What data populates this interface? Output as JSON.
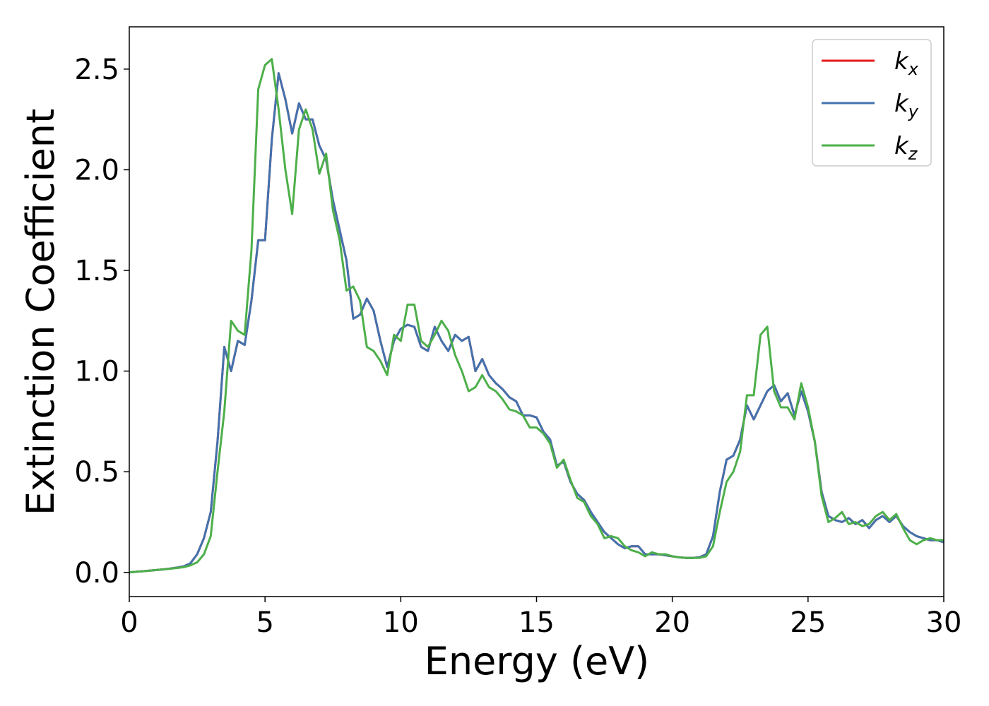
{
  "chart_data": {
    "type": "line",
    "x_label": "Energy (eV)",
    "y_label": "Extinction Coefficient",
    "x": [
      0,
      0.25,
      0.5,
      0.75,
      1,
      1.25,
      1.5,
      1.75,
      2,
      2.25,
      2.5,
      2.75,
      3,
      3.25,
      3.5,
      3.75,
      4,
      4.25,
      4.5,
      4.75,
      5,
      5.25,
      5.5,
      5.75,
      6,
      6.25,
      6.5,
      6.75,
      7,
      7.25,
      7.5,
      7.75,
      8,
      8.25,
      8.5,
      8.75,
      9,
      9.25,
      9.5,
      9.75,
      10,
      10.25,
      10.5,
      10.75,
      11,
      11.25,
      11.5,
      11.75,
      12,
      12.25,
      12.5,
      12.75,
      13,
      13.25,
      13.5,
      13.75,
      14,
      14.25,
      14.5,
      14.75,
      15,
      15.25,
      15.5,
      15.75,
      16,
      16.25,
      16.5,
      16.75,
      17,
      17.25,
      17.5,
      17.75,
      18,
      18.25,
      18.5,
      18.75,
      19,
      19.25,
      19.5,
      19.75,
      20,
      20.25,
      20.5,
      20.75,
      21,
      21.25,
      21.5,
      21.75,
      22,
      22.25,
      22.5,
      22.75,
      23,
      23.25,
      23.5,
      23.75,
      24,
      24.25,
      24.5,
      24.75,
      25,
      25.25,
      25.5,
      25.75,
      26,
      26.25,
      26.5,
      26.75,
      27,
      27.25,
      27.5,
      27.75,
      28,
      28.25,
      28.5,
      28.75,
      29,
      29.25,
      29.5,
      29.75,
      30
    ],
    "series": [
      {
        "name": "kx",
        "color": "#e41a1c",
        "values": [
          0,
          0.003,
          0.006,
          0.009,
          0.012,
          0.015,
          0.019,
          0.024,
          0.03,
          0.045,
          0.09,
          0.17,
          0.3,
          0.65,
          1.12,
          1.0,
          1.15,
          1.13,
          1.35,
          1.65,
          1.65,
          2.15,
          2.48,
          2.35,
          2.18,
          2.33,
          2.25,
          2.25,
          2.12,
          2.05,
          1.85,
          1.7,
          1.55,
          1.26,
          1.28,
          1.36,
          1.3,
          1.15,
          1.02,
          1.15,
          1.21,
          1.23,
          1.22,
          1.12,
          1.1,
          1.22,
          1.15,
          1.1,
          1.18,
          1.15,
          1.17,
          1.0,
          1.06,
          0.98,
          0.94,
          0.91,
          0.87,
          0.85,
          0.78,
          0.78,
          0.77,
          0.7,
          0.66,
          0.53,
          0.55,
          0.45,
          0.39,
          0.36,
          0.3,
          0.25,
          0.2,
          0.17,
          0.14,
          0.12,
          0.13,
          0.13,
          0.09,
          0.09,
          0.09,
          0.085,
          0.08,
          0.075,
          0.072,
          0.072,
          0.075,
          0.09,
          0.18,
          0.4,
          0.56,
          0.58,
          0.66,
          0.83,
          0.76,
          0.83,
          0.9,
          0.93,
          0.85,
          0.89,
          0.78,
          0.9,
          0.8,
          0.65,
          0.4,
          0.28,
          0.26,
          0.25,
          0.27,
          0.24,
          0.26,
          0.22,
          0.26,
          0.28,
          0.25,
          0.28,
          0.23,
          0.2,
          0.18,
          0.17,
          0.16,
          0.16,
          0.15
        ]
      },
      {
        "name": "ky",
        "color": "#4272ae",
        "values": [
          0,
          0.003,
          0.006,
          0.009,
          0.012,
          0.015,
          0.019,
          0.024,
          0.03,
          0.045,
          0.09,
          0.17,
          0.3,
          0.65,
          1.12,
          1.0,
          1.15,
          1.13,
          1.35,
          1.65,
          1.65,
          2.15,
          2.48,
          2.35,
          2.18,
          2.33,
          2.25,
          2.25,
          2.12,
          2.05,
          1.85,
          1.7,
          1.55,
          1.26,
          1.28,
          1.36,
          1.3,
          1.15,
          1.02,
          1.15,
          1.21,
          1.23,
          1.22,
          1.12,
          1.1,
          1.22,
          1.15,
          1.1,
          1.18,
          1.15,
          1.17,
          1.0,
          1.06,
          0.98,
          0.94,
          0.91,
          0.87,
          0.85,
          0.78,
          0.78,
          0.77,
          0.7,
          0.66,
          0.53,
          0.55,
          0.45,
          0.39,
          0.36,
          0.3,
          0.25,
          0.2,
          0.17,
          0.14,
          0.12,
          0.13,
          0.13,
          0.09,
          0.09,
          0.09,
          0.085,
          0.08,
          0.075,
          0.072,
          0.072,
          0.075,
          0.09,
          0.18,
          0.4,
          0.56,
          0.58,
          0.66,
          0.83,
          0.76,
          0.83,
          0.9,
          0.93,
          0.85,
          0.89,
          0.78,
          0.9,
          0.8,
          0.65,
          0.4,
          0.28,
          0.26,
          0.25,
          0.27,
          0.24,
          0.26,
          0.22,
          0.26,
          0.28,
          0.25,
          0.28,
          0.23,
          0.2,
          0.18,
          0.17,
          0.16,
          0.16,
          0.15
        ]
      },
      {
        "name": "kz",
        "color": "#4daf4a",
        "values": [
          0,
          0.003,
          0.006,
          0.009,
          0.012,
          0.015,
          0.018,
          0.022,
          0.026,
          0.035,
          0.05,
          0.09,
          0.18,
          0.5,
          0.8,
          1.25,
          1.2,
          1.18,
          1.6,
          2.4,
          2.52,
          2.55,
          2.3,
          2.0,
          1.78,
          2.2,
          2.3,
          2.2,
          1.98,
          2.08,
          1.8,
          1.65,
          1.4,
          1.42,
          1.35,
          1.12,
          1.1,
          1.05,
          0.98,
          1.18,
          1.15,
          1.33,
          1.33,
          1.15,
          1.12,
          1.18,
          1.25,
          1.2,
          1.08,
          1.0,
          0.9,
          0.92,
          0.98,
          0.92,
          0.9,
          0.86,
          0.81,
          0.8,
          0.78,
          0.72,
          0.72,
          0.69,
          0.64,
          0.52,
          0.56,
          0.46,
          0.37,
          0.35,
          0.28,
          0.24,
          0.17,
          0.18,
          0.17,
          0.13,
          0.11,
          0.1,
          0.08,
          0.1,
          0.09,
          0.09,
          0.08,
          0.075,
          0.072,
          0.072,
          0.072,
          0.08,
          0.13,
          0.3,
          0.45,
          0.5,
          0.6,
          0.88,
          0.88,
          1.18,
          1.22,
          0.9,
          0.82,
          0.82,
          0.76,
          0.94,
          0.82,
          0.65,
          0.38,
          0.25,
          0.27,
          0.3,
          0.24,
          0.25,
          0.23,
          0.24,
          0.28,
          0.3,
          0.26,
          0.29,
          0.22,
          0.16,
          0.14,
          0.16,
          0.17,
          0.16,
          0.16
        ]
      }
    ],
    "xlim": [
      0,
      30
    ],
    "xticks": [
      0,
      5,
      10,
      15,
      20,
      25,
      30
    ],
    "ylim": [
      -0.12,
      2.71
    ],
    "yticks": [
      {
        "value": 0,
        "label": "0.0"
      },
      {
        "value": 0.5,
        "label": "0.5"
      },
      {
        "value": 1,
        "label": "1.0"
      },
      {
        "value": 1.5,
        "label": "1.5"
      },
      {
        "value": 2,
        "label": "2.0"
      },
      {
        "value": 2.5,
        "label": "2.5"
      }
    ],
    "legend": "upper right"
  }
}
